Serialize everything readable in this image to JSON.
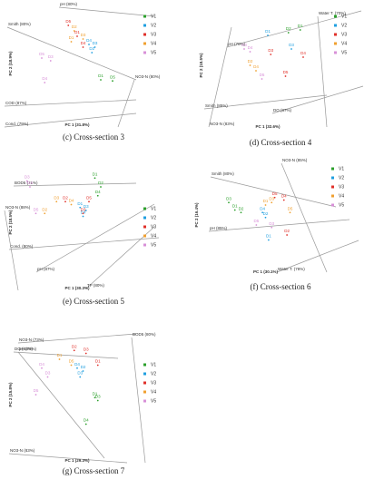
{
  "chart_data": [
    {
      "type": "scatter",
      "caption": "(c) Cross-section 3",
      "xlabel": "PC 1 (31.8%)",
      "ylabel": "PC 2 (18.9%)",
      "xlim": [
        -1,
        1
      ],
      "ylim": [
        -1,
        1
      ],
      "biplot_axes": [
        "Smith (80%)",
        "pH (80%)",
        "COD (87%)",
        "Cond. (79%)",
        "NO3-N (80%)"
      ],
      "series": [
        {
          "name": "V1",
          "color": "#2ca02c",
          "x": [
            0.4,
            0.6
          ],
          "y": [
            -0.3,
            -0.32
          ],
          "labels": [
            "D1",
            "D5"
          ]
        },
        {
          "name": "V2",
          "color": "#1f9fe0",
          "x": [
            0.2,
            0.3,
            0.25
          ],
          "y": [
            0.35,
            0.3,
            0.2
          ],
          "labels": [
            "D4",
            "D3",
            "D2"
          ]
        },
        {
          "name": "V3",
          "color": "#e0302a",
          "x": [
            -0.15,
            0.0,
            0.1
          ],
          "y": [
            0.7,
            0.5,
            0.3
          ],
          "labels": [
            "D5",
            "D1",
            "D4"
          ]
        },
        {
          "name": "V4",
          "color": "#f0a030",
          "x": [
            -0.05,
            0.1,
            -0.1
          ],
          "y": [
            0.6,
            0.45,
            0.4
          ],
          "labels": [
            "D2",
            "D3",
            "D1"
          ]
        },
        {
          "name": "V5",
          "color": "#d890d8",
          "x": [
            -0.6,
            -0.45,
            -0.55
          ],
          "y": [
            0.1,
            0.05,
            -0.35
          ],
          "labels": [
            "D5",
            "D3",
            "D4"
          ]
        }
      ]
    },
    {
      "type": "scatter",
      "caption": "(d) Cross-section 4",
      "xlabel": "PC 1 (32.6%)",
      "ylabel": "PC 2 (18.5%)",
      "xlim": [
        -1,
        1
      ],
      "ylim": [
        -1,
        1
      ],
      "biplot_axes": [
        "pH (70%)",
        "Smith (85%)",
        "NO3-N (83%)",
        "Water T. (70%)",
        "DO (87%)"
      ],
      "series": [
        {
          "name": "V1",
          "color": "#2ca02c",
          "x": [
            0.35,
            0.55
          ],
          "y": [
            0.6,
            0.65
          ],
          "labels": [
            "D2",
            "D1"
          ]
        },
        {
          "name": "V2",
          "color": "#1f9fe0",
          "x": [
            0.0,
            0.4
          ],
          "y": [
            0.55,
            0.3
          ],
          "labels": [
            "D1",
            "D3"
          ]
        },
        {
          "name": "V3",
          "color": "#e0302a",
          "x": [
            0.05,
            0.6,
            0.3
          ],
          "y": [
            0.2,
            0.15,
            -0.2
          ],
          "labels": [
            "D3",
            "D4",
            "D5"
          ]
        },
        {
          "name": "V4",
          "color": "#f0a030",
          "x": [
            -0.3,
            -0.2
          ],
          "y": [
            0.0,
            -0.1
          ],
          "labels": [
            "D2",
            "D4"
          ]
        },
        {
          "name": "V5",
          "color": "#d890d8",
          "x": [
            -0.4,
            -0.3,
            -0.1
          ],
          "y": [
            0.3,
            0.25,
            -0.25
          ],
          "labels": [
            "D3",
            "D4",
            "D5"
          ]
        }
      ]
    },
    {
      "type": "scatter",
      "caption": "(e) Cross-section 5",
      "xlabel": "PC 1 (30.3%)",
      "ylabel": "PC 2 (18.5%)",
      "xlim": [
        -1,
        1
      ],
      "ylim": [
        -1,
        1
      ],
      "biplot_axes": [
        "BOD5 (71%)",
        "pH (87%)",
        "Cond. (80%)",
        "NO3-N (88%)",
        "TP (80%)"
      ],
      "series": [
        {
          "name": "V1",
          "color": "#2ca02c",
          "x": [
            0.3,
            0.4,
            0.35
          ],
          "y": [
            0.75,
            0.6,
            0.45
          ],
          "labels": [
            "D1",
            "D2",
            "D4"
          ]
        },
        {
          "name": "V2",
          "color": "#1f9fe0",
          "x": [
            0.05,
            0.15,
            0.1
          ],
          "y": [
            0.25,
            0.2,
            0.1
          ],
          "labels": [
            "D1",
            "D3",
            "D4"
          ]
        },
        {
          "name": "V3",
          "color": "#e0302a",
          "x": [
            -0.2,
            0.2,
            0.1
          ],
          "y": [
            0.35,
            0.35,
            0.15
          ],
          "labels": [
            "D2",
            "D5",
            "D3"
          ]
        },
        {
          "name": "V4",
          "color": "#f0a030",
          "x": [
            -0.35,
            -0.1,
            -0.55
          ],
          "y": [
            0.35,
            0.3,
            0.15
          ],
          "labels": [
            "D3",
            "D4",
            "D2"
          ]
        },
        {
          "name": "V5",
          "color": "#d890d8",
          "x": [
            -0.85,
            -0.8,
            -0.7
          ],
          "y": [
            0.7,
            0.6,
            0.15
          ],
          "labels": [
            "D3",
            "D4",
            "D5"
          ]
        }
      ]
    },
    {
      "type": "scatter",
      "caption": "(f) Cross-section 6",
      "xlabel": "PC 1 (30.1%)",
      "ylabel": "PC 2 (16.4%)",
      "xlim": [
        -1,
        1
      ],
      "ylim": [
        -1,
        1
      ],
      "biplot_axes": [
        "Smith (80%)",
        "pH (85%)",
        "Water T. (78%)",
        "NO3-N (85%)"
      ],
      "series": [
        {
          "name": "V1",
          "color": "#2ca02c",
          "x": [
            -0.6,
            -0.5,
            -0.4
          ],
          "y": [
            0.25,
            0.1,
            0.05
          ],
          "labels": [
            "D3",
            "D1",
            "D2"
          ]
        },
        {
          "name": "V2",
          "color": "#1f9fe0",
          "x": [
            -0.05,
            0.0,
            0.05
          ],
          "y": [
            0.05,
            -0.05,
            -0.5
          ],
          "labels": [
            "D4",
            "D2",
            "D1"
          ]
        },
        {
          "name": "V3",
          "color": "#e0302a",
          "x": [
            0.15,
            0.3,
            0.35
          ],
          "y": [
            0.35,
            0.3,
            -0.4
          ],
          "labels": [
            "D5",
            "D4",
            "D2"
          ]
        },
        {
          "name": "V4",
          "color": "#f0a030",
          "x": [
            0.0,
            0.1,
            0.4
          ],
          "y": [
            0.2,
            0.25,
            0.05
          ],
          "labels": [
            "D1",
            "D3",
            "D5"
          ]
        },
        {
          "name": "V5",
          "color": "#d890d8",
          "x": [
            -0.15,
            0.1
          ],
          "y": [
            -0.2,
            -0.25
          ],
          "labels": [
            "D5",
            "D3"
          ]
        }
      ]
    },
    {
      "type": "scatter",
      "caption": "(g) Cross-section 7",
      "xlabel": "PC 1 (29.3%)",
      "ylabel": "PC 2 (15.8%)",
      "xlim": [
        -1,
        1
      ],
      "ylim": [
        -1,
        1
      ],
      "biplot_axes": [
        "NO3-N (73%)",
        "DO (83%)",
        "NO3-N (83%)",
        "BOD5 (80%)",
        "pH (78%)"
      ],
      "series": [
        {
          "name": "V1",
          "color": "#2ca02c",
          "x": [
            0.3,
            0.35,
            0.15
          ],
          "y": [
            -0.05,
            -0.1,
            -0.5
          ],
          "labels": [
            "D1",
            "D3",
            "D4"
          ]
        },
        {
          "name": "V2",
          "color": "#1f9fe0",
          "x": [
            0.0,
            0.1,
            0.05
          ],
          "y": [
            0.45,
            0.4,
            0.3
          ],
          "labels": [
            "D4",
            "D2",
            "D3"
          ]
        },
        {
          "name": "V3",
          "color": "#e0302a",
          "x": [
            -0.05,
            0.15,
            0.35
          ],
          "y": [
            0.75,
            0.7,
            0.5
          ],
          "labels": [
            "D2",
            "D3",
            "D1"
          ]
        },
        {
          "name": "V4",
          "color": "#f0a030",
          "x": [
            -0.3,
            -0.1
          ],
          "y": [
            0.6,
            0.5
          ],
          "labels": [
            "D1",
            "D5"
          ]
        },
        {
          "name": "V5",
          "color": "#d890d8",
          "x": [
            -0.6,
            -0.5,
            -0.7
          ],
          "y": [
            0.45,
            0.3,
            0.0
          ],
          "labels": [
            "D4",
            "D3",
            "D5"
          ]
        }
      ]
    }
  ]
}
